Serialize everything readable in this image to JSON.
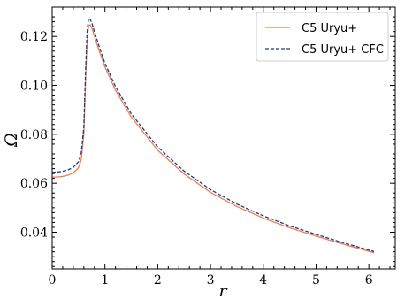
{
  "chart_data": {
    "type": "line",
    "title": "",
    "xlabel": "r",
    "ylabel": "Ω",
    "xlim": [
      0,
      6.5
    ],
    "ylim": [
      0.025,
      0.132
    ],
    "xticks": [
      0,
      1,
      2,
      3,
      4,
      5,
      6
    ],
    "yticks": [
      0.04,
      0.06,
      0.08,
      0.1,
      0.12
    ],
    "ytick_labels": [
      "0.04",
      "0.06",
      "0.08",
      "0.10",
      "0.12"
    ],
    "grid": false,
    "legend_position": "top-right",
    "series": [
      {
        "name": "C5 Uryu+",
        "color": "#f07d50",
        "style": "solid",
        "x": [
          0.0,
          0.1,
          0.2,
          0.3,
          0.4,
          0.5,
          0.55,
          0.6,
          0.63,
          0.66,
          0.69,
          0.72,
          0.76,
          0.8,
          0.9,
          1.0,
          1.2,
          1.5,
          2.0,
          2.5,
          3.0,
          3.5,
          4.0,
          4.5,
          5.0,
          5.5,
          6.0,
          6.1
        ],
        "y": [
          0.0625,
          0.0626,
          0.0628,
          0.0633,
          0.0642,
          0.0664,
          0.0695,
          0.08,
          0.1,
          0.118,
          0.1245,
          0.1248,
          0.123,
          0.12,
          0.1135,
          0.1075,
          0.098,
          0.087,
          0.0735,
          0.0638,
          0.0563,
          0.0505,
          0.0458,
          0.0418,
          0.0384,
          0.0352,
          0.0322,
          0.0316
        ]
      },
      {
        "name": "C5 Uryu+ CFC",
        "color": "#1f3a8a",
        "style": "dashed",
        "x": [
          0.0,
          0.1,
          0.2,
          0.3,
          0.4,
          0.5,
          0.55,
          0.6,
          0.63,
          0.66,
          0.69,
          0.72,
          0.76,
          0.8,
          0.9,
          1.0,
          1.2,
          1.5,
          2.0,
          2.5,
          3.0,
          3.5,
          4.0,
          4.5,
          5.0,
          5.5,
          6.0,
          6.1
        ],
        "y": [
          0.0645,
          0.0646,
          0.0649,
          0.0655,
          0.0665,
          0.0688,
          0.0722,
          0.083,
          0.104,
          0.1215,
          0.1275,
          0.127,
          0.125,
          0.122,
          0.1153,
          0.109,
          0.0995,
          0.0883,
          0.0748,
          0.065,
          0.0574,
          0.0515,
          0.0467,
          0.0426,
          0.0391,
          0.0358,
          0.0327,
          0.0321
        ]
      }
    ]
  }
}
